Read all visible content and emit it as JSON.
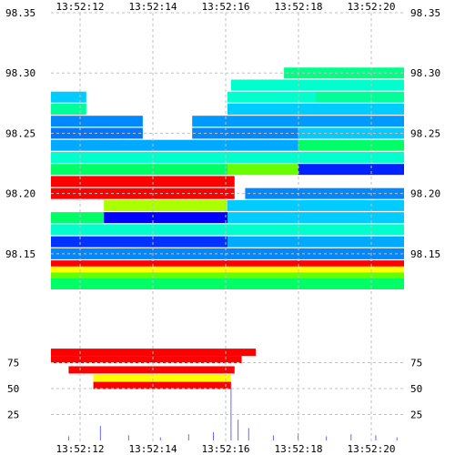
{
  "chart_data": {
    "type": "heatmap",
    "title": "",
    "xlabel": "",
    "ylabel": "",
    "x_ticks": [
      "13:52:12",
      "13:52:14",
      "13:52:16",
      "13:52:18",
      "13:52:20"
    ],
    "price_axis": {
      "ylim": [
        98.125,
        98.35
      ],
      "ticks": [
        "98.35",
        "98.30",
        "98.25",
        "98.20",
        "98.15"
      ],
      "tick_values": [
        98.35,
        98.3,
        98.25,
        98.2,
        98.15
      ]
    },
    "volume_axis": {
      "ylim": [
        0,
        100
      ],
      "ticks": [
        "75",
        "50",
        "25"
      ],
      "tick_values": [
        75,
        50,
        25
      ]
    },
    "grid": true,
    "time_range_seconds": [
      0,
      10
    ],
    "heatmap_colors": [
      "#ff0000",
      "#ffff00",
      "#00ff00",
      "#00ffcc",
      "#00ccff",
      "#0066ff",
      "#0000ff",
      "#6600ff"
    ],
    "heatmap_bands": [
      {
        "price": 98.3,
        "t0": 6.6,
        "t1": 10,
        "color": "#00ff88"
      },
      {
        "price": 98.29,
        "t0": 5.1,
        "t1": 10,
        "color": "#00ffcc"
      },
      {
        "price": 98.28,
        "t0": 0,
        "t1": 1.0,
        "color": "#00ccff"
      },
      {
        "price": 98.28,
        "t0": 5.0,
        "t1": 7.5,
        "color": "#00ffcc"
      },
      {
        "price": 98.28,
        "t0": 7.5,
        "t1": 10,
        "color": "#00ff99"
      },
      {
        "price": 98.27,
        "t0": 0,
        "t1": 1.0,
        "color": "#00ff99"
      },
      {
        "price": 98.27,
        "t0": 5.0,
        "t1": 10,
        "color": "#00ccff"
      },
      {
        "price": 98.26,
        "t0": 0,
        "t1": 2.6,
        "color": "#0088ff"
      },
      {
        "price": 98.26,
        "t0": 4.0,
        "t1": 10,
        "color": "#0099ff"
      },
      {
        "price": 98.25,
        "t0": 0,
        "t1": 2.6,
        "color": "#0077ff"
      },
      {
        "price": 98.25,
        "t0": 4.0,
        "t1": 7.0,
        "color": "#0088ff"
      },
      {
        "price": 98.25,
        "t0": 7.0,
        "t1": 10,
        "color": "#00ccff"
      },
      {
        "price": 98.24,
        "t0": 0,
        "t1": 7.0,
        "color": "#00aaff"
      },
      {
        "price": 98.24,
        "t0": 7.0,
        "t1": 10,
        "color": "#00ff66"
      },
      {
        "price": 98.23,
        "t0": 0,
        "t1": 10,
        "color": "#00ffcc"
      },
      {
        "price": 98.22,
        "t0": 0,
        "t1": 5.0,
        "color": "#00ff66"
      },
      {
        "price": 98.22,
        "t0": 5.0,
        "t1": 7.0,
        "color": "#66ff00"
      },
      {
        "price": 98.22,
        "t0": 7.0,
        "t1": 10,
        "color": "#0022ff"
      },
      {
        "price": 98.21,
        "t0": 0,
        "t1": 5.2,
        "color": "#ff0000"
      },
      {
        "price": 98.2,
        "t0": 0,
        "t1": 5.2,
        "color": "#ff0000"
      },
      {
        "price": 98.2,
        "t0": 5.5,
        "t1": 10,
        "color": "#0088ff"
      },
      {
        "price": 98.19,
        "t0": 1.5,
        "t1": 5.0,
        "color": "#aaff00"
      },
      {
        "price": 98.19,
        "t0": 5.0,
        "t1": 10,
        "color": "#00ccff"
      },
      {
        "price": 98.18,
        "t0": 0,
        "t1": 1.5,
        "color": "#00ff66"
      },
      {
        "price": 98.18,
        "t0": 1.5,
        "t1": 5.0,
        "color": "#0000ff"
      },
      {
        "price": 98.18,
        "t0": 5.0,
        "t1": 10,
        "color": "#00ccff"
      },
      {
        "price": 98.17,
        "t0": 0,
        "t1": 10,
        "color": "#00ffcc"
      },
      {
        "price": 98.16,
        "t0": 0,
        "t1": 5.0,
        "color": "#0033ff"
      },
      {
        "price": 98.16,
        "t0": 5.0,
        "t1": 10,
        "color": "#00aaff"
      },
      {
        "price": 98.15,
        "t0": 0,
        "t1": 10,
        "color": "#0088ff"
      },
      {
        "price": 98.14,
        "t0": 0,
        "t1": 10,
        "color": "#ff0000"
      },
      {
        "price": 98.135,
        "t0": 0,
        "t1": 10,
        "color": "#ffff00"
      },
      {
        "price": 98.13,
        "t0": 0,
        "t1": 10,
        "color": "#66ff00"
      },
      {
        "price": 98.125,
        "t0": 0,
        "t1": 10,
        "color": "#00ff66"
      }
    ],
    "volume_bands": [
      {
        "level": 85,
        "t0": 0,
        "t1": 5.8,
        "color": "#ff0000"
      },
      {
        "level": 78,
        "t0": 0,
        "t1": 5.4,
        "color": "#ff0000"
      },
      {
        "level": 68,
        "t0": 0.5,
        "t1": 5.2,
        "color": "#ff0000"
      },
      {
        "level": 60,
        "t0": 1.2,
        "t1": 5.1,
        "color": "#ffff00"
      },
      {
        "level": 53,
        "t0": 1.2,
        "t1": 5.1,
        "color": "#ff0000"
      }
    ],
    "volume_spikes": [
      {
        "t": 0.5,
        "v": 4
      },
      {
        "t": 1.4,
        "v": 14
      },
      {
        "t": 2.2,
        "v": 5
      },
      {
        "t": 3.1,
        "v": 3
      },
      {
        "t": 3.9,
        "v": 6
      },
      {
        "t": 4.6,
        "v": 8
      },
      {
        "t": 5.1,
        "v": 55
      },
      {
        "t": 5.3,
        "v": 20
      },
      {
        "t": 5.6,
        "v": 12
      },
      {
        "t": 6.3,
        "v": 5
      },
      {
        "t": 7.0,
        "v": 7
      },
      {
        "t": 7.8,
        "v": 4
      },
      {
        "t": 8.5,
        "v": 6
      },
      {
        "t": 9.2,
        "v": 5
      },
      {
        "t": 9.8,
        "v": 3
      }
    ]
  }
}
